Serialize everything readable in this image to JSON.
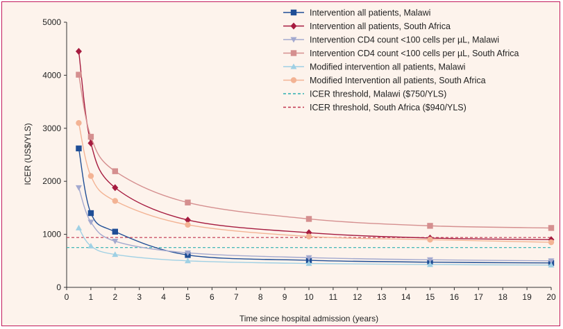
{
  "chart_data": {
    "type": "line",
    "xlabel": "Time since hospital admission (years)",
    "ylabel": "ICER (US$/YLS)",
    "xlim": [
      0,
      20
    ],
    "ylim": [
      0,
      5000
    ],
    "xticks": [
      0,
      1,
      2,
      3,
      4,
      5,
      6,
      7,
      8,
      9,
      10,
      11,
      12,
      13,
      14,
      15,
      16,
      17,
      18,
      19,
      20
    ],
    "yticks": [
      0,
      1000,
      2000,
      3000,
      4000,
      5000
    ],
    "grid": false,
    "legend_position": "top-right",
    "series": [
      {
        "name": "Intervention all patients, Malawi",
        "color": "#1f4e96",
        "marker": "square",
        "x": [
          0.5,
          1,
          2,
          5,
          10,
          15,
          20
        ],
        "y": [
          2620,
          1400,
          1050,
          610,
          510,
          475,
          460
        ]
      },
      {
        "name": "Intervention all patients, South Africa",
        "color": "#a61b3f",
        "marker": "diamond",
        "x": [
          0.5,
          1,
          2,
          5,
          10,
          15,
          20
        ],
        "y": [
          4450,
          2720,
          1880,
          1270,
          1030,
          930,
          900
        ]
      },
      {
        "name": "Intervention CD4 count <100 cells per µL, Malawi",
        "color": "#a3a9cf",
        "marker": "triangle-down",
        "x": [
          0.5,
          1,
          2,
          5,
          10,
          15,
          20
        ],
        "y": [
          1880,
          1230,
          870,
          650,
          560,
          520,
          500
        ]
      },
      {
        "name": "Intervention CD4 count <100 cells per µL, South Africa",
        "color": "#d58f8f",
        "marker": "square",
        "x": [
          0.5,
          1,
          2,
          5,
          10,
          15,
          20
        ],
        "y": [
          4010,
          2840,
          2190,
          1600,
          1290,
          1160,
          1120
        ]
      },
      {
        "name": "Modified intervention all patients, Malawi",
        "color": "#9fd0e4",
        "marker": "triangle-up",
        "x": [
          0.5,
          1,
          2,
          5,
          10,
          15,
          20
        ],
        "y": [
          1120,
          780,
          620,
          500,
          450,
          430,
          420
        ]
      },
      {
        "name": "Modified Intervention all patients, South Africa",
        "color": "#f3b394",
        "marker": "circle",
        "x": [
          0.5,
          1,
          2,
          5,
          10,
          15,
          20
        ],
        "y": [
          3100,
          2100,
          1630,
          1180,
          960,
          900,
          850
        ]
      }
    ],
    "thresholds": [
      {
        "name": "ICER threshold, Malawi ($750/YLS)",
        "color": "#2bb0b0",
        "value": 750
      },
      {
        "name": "ICER threshold, South Africa ($940/YLS)",
        "color": "#c0334d",
        "value": 940
      }
    ]
  }
}
